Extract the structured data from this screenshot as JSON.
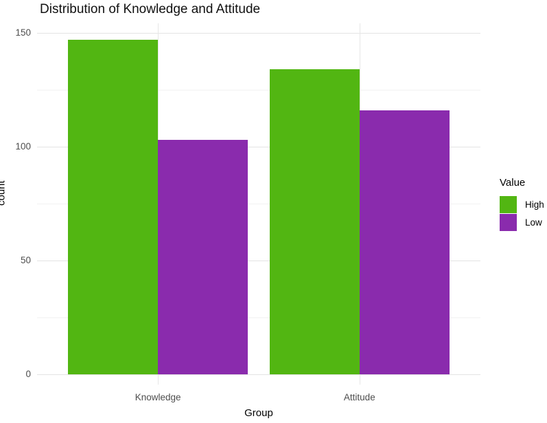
{
  "title": "Distribution of Knowledge and Attitude",
  "colors": {
    "high": "#52b612",
    "low": "#8a2bad",
    "grid_major": "#e3e3e3",
    "grid_minor": "#f2f2f2",
    "axis_text": "#4d4d4d",
    "title_text": "#111111"
  },
  "chart_data": {
    "type": "bar",
    "grouped": true,
    "categories": [
      "Knowledge",
      "Attitude"
    ],
    "series": [
      {
        "name": "High",
        "color": "#52b612",
        "values": [
          147,
          134
        ]
      },
      {
        "name": "Low",
        "color": "#8a2bad",
        "values": [
          103,
          116
        ]
      }
    ],
    "title": "Distribution of Knowledge and Attitude",
    "xlabel": "Group",
    "ylabel": "count",
    "ylim": [
      0,
      154
    ],
    "yticks": [
      0,
      50,
      100,
      150
    ],
    "yticks_minor": [
      25,
      75,
      125
    ],
    "grid": true,
    "legend_title": "Value",
    "legend_position": "right",
    "background": "white"
  },
  "axes": {
    "x_title": "Group",
    "y_title": "count",
    "x_tick_labels": [
      "Knowledge",
      "Attitude"
    ],
    "y_tick_labels": [
      "0",
      "50",
      "100",
      "150"
    ]
  },
  "legend": {
    "title": "Value",
    "items": [
      {
        "label": "High",
        "color": "#52b612"
      },
      {
        "label": "Low",
        "color": "#8a2bad"
      }
    ]
  }
}
